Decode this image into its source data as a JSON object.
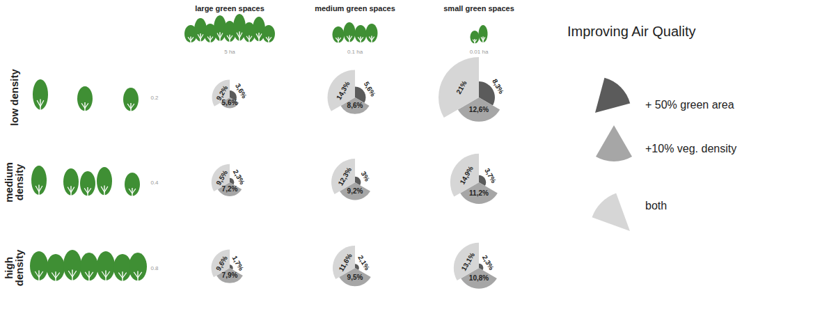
{
  "chart_data": {
    "type": "rose",
    "legend_title": "Improving Air Quality",
    "legend": "right",
    "data_labels": true,
    "tick_labels": false,
    "categories": [
      "+ 50% green area",
      "+10% veg. density",
      "both"
    ],
    "colors": [
      "#5b5b5b",
      "#a6a6a6",
      "#d6d6d6"
    ],
    "columns": [
      {
        "title": "large green spaces",
        "size": "5 ha"
      },
      {
        "title": "medium green spaces",
        "size": "0.1 ha"
      },
      {
        "title": "small green spaces",
        "size": "0.01 ha"
      }
    ],
    "rows": [
      {
        "title": "low density",
        "density": 0.2
      },
      {
        "title": "medium density",
        "density": 0.4
      },
      {
        "title": "high density",
        "density": 0.8
      }
    ],
    "panels": [
      [
        {
          "values": [
            3.6,
            5.6,
            9.2
          ],
          "value_labels": [
            "3,6%",
            "5,6%",
            "9,2%"
          ]
        },
        {
          "values": [
            5.6,
            8.6,
            14.3
          ],
          "value_labels": [
            "5,6%",
            "8,6%",
            "14,3%"
          ]
        },
        {
          "values": [
            8.3,
            12.6,
            21
          ],
          "value_labels": [
            "8,3%",
            "12,6%",
            "21%"
          ]
        }
      ],
      [
        {
          "values": [
            2.3,
            7.2,
            9.5
          ],
          "value_labels": [
            "2,3%",
            "7,2%",
            "9,5%"
          ]
        },
        {
          "values": [
            3,
            9.2,
            12.3
          ],
          "value_labels": [
            "3%",
            "9,2%",
            "12,3%"
          ]
        },
        {
          "values": [
            3.7,
            11.2,
            14.9
          ],
          "value_labels": [
            "3,7%",
            "11,2%",
            "14,9%"
          ]
        }
      ],
      [
        {
          "values": [
            1.7,
            7.9,
            9.6
          ],
          "value_labels": [
            "1,7%",
            "7,9%",
            "9,6%"
          ]
        },
        {
          "values": [
            2.1,
            9.5,
            11.6
          ],
          "value_labels": [
            "2,1%",
            "9,5%",
            "11,6%"
          ]
        },
        {
          "values": [
            2.3,
            10.8,
            13.1
          ],
          "value_labels": [
            "2,3%",
            "10,8%",
            "13,1%"
          ]
        }
      ]
    ]
  }
}
